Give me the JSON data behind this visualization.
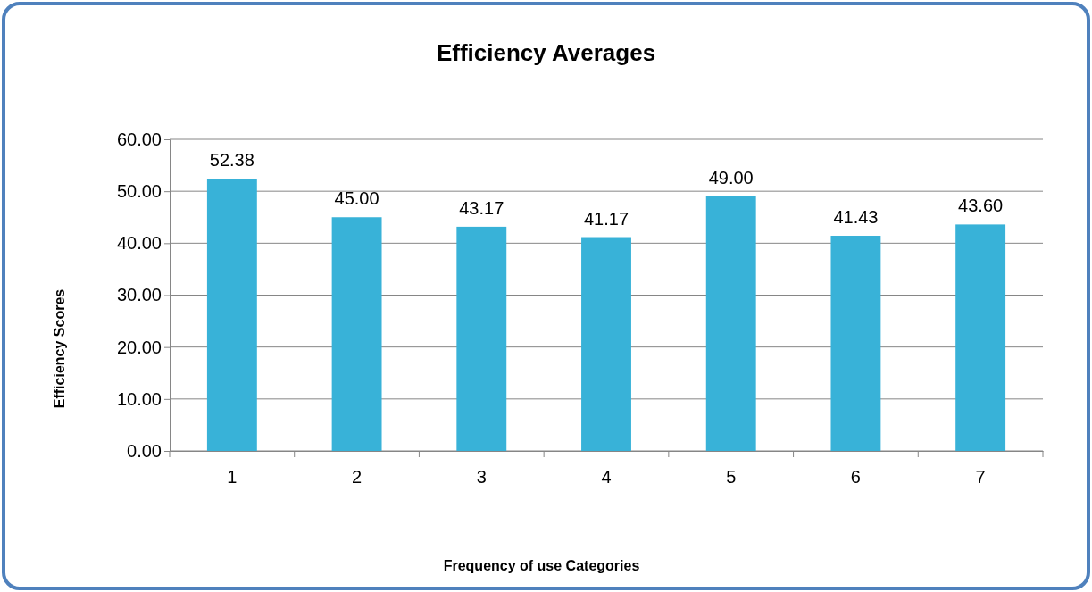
{
  "chart_data": {
    "type": "bar",
    "title": "Efficiency Averages",
    "xlabel": "Frequency of use Categories",
    "ylabel": "Efficiency Scores",
    "categories": [
      "1",
      "2",
      "3",
      "4",
      "5",
      "6",
      "7"
    ],
    "values": [
      52.38,
      45.0,
      43.17,
      41.17,
      49.0,
      41.43,
      43.6
    ],
    "value_labels": [
      "52.38",
      "45.00",
      "43.17",
      "41.17",
      "49.00",
      "41.43",
      "43.60"
    ],
    "color": "#38b2d8",
    "ylim": [
      0,
      60
    ],
    "yticks": [
      {
        "value": 0,
        "label": "0.00"
      },
      {
        "value": 10,
        "label": "10.00"
      },
      {
        "value": 20,
        "label": "20.00"
      },
      {
        "value": 30,
        "label": "30.00"
      },
      {
        "value": 40,
        "label": "40.00"
      },
      {
        "value": 50,
        "label": "50.00"
      },
      {
        "value": 60,
        "label": "60.00"
      }
    ],
    "grid": "y"
  }
}
